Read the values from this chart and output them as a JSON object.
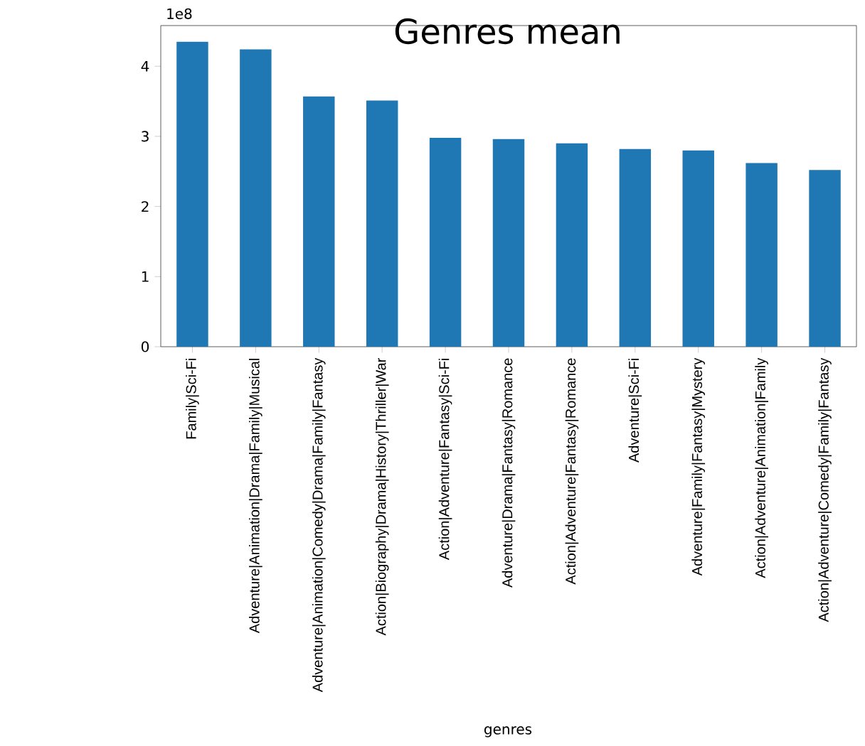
{
  "chart_data": {
    "type": "bar",
    "title": "Genres mean",
    "xlabel": "genres",
    "annotations": [
      "1e8"
    ],
    "categories": [
      "Family|Sci-Fi",
      "Adventure|Animation|Drama|Family|Musical",
      "Adventure|Animation|Comedy|Drama|Family|Fantasy",
      "Action|Biography|Drama|History|Thriller|War",
      "Action|Adventure|Fantasy|Sci-Fi",
      "Adventure|Drama|Fantasy|Romance",
      "Action|Adventure|Fantasy|Romance",
      "Adventure|Sci-Fi",
      "Adventure|Family|Fantasy|Mystery",
      "Action|Adventure|Animation|Family",
      "Action|Adventure|Comedy|Family|Fantasy"
    ],
    "values": [
      4.35,
      4.24,
      3.57,
      3.51,
      2.98,
      2.96,
      2.9,
      2.82,
      2.8,
      2.62,
      2.52
    ],
    "color": "#1f77b4",
    "ylim": [
      0,
      4.58
    ],
    "yticks": [
      0,
      1,
      2,
      3,
      4
    ]
  }
}
